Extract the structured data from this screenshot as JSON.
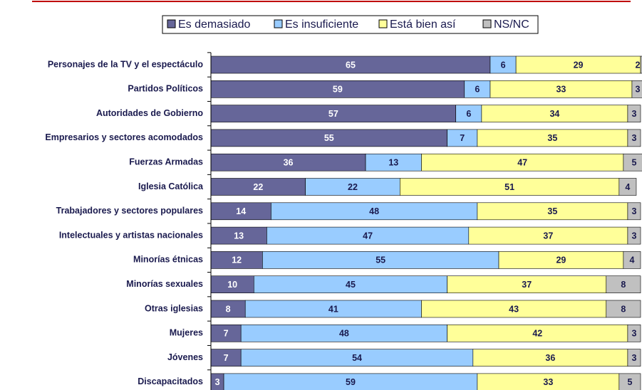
{
  "chart_data": {
    "type": "stacked_bar_horizontal",
    "categories": [
      "Personajes de la TV y el espectáculo",
      "Partidos Políticos",
      "Autoridades de Gobierno",
      "Empresarios y sectores acomodados",
      "Fuerzas Armadas",
      "Iglesia Católica",
      "Trabajadores y sectores populares",
      "Intelectuales y artistas nacionales",
      "Minorías étnicas",
      "Minorías sexuales",
      "Otras iglesias",
      "Mujeres",
      "Jóvenes",
      "Discapacitados"
    ],
    "series": [
      {
        "name": "Es demasiado",
        "color": "#666699",
        "values": [
          65,
          59,
          57,
          55,
          36,
          22,
          14,
          13,
          12,
          10,
          8,
          7,
          7,
          3
        ]
      },
      {
        "name": "Es insuficiente",
        "color": "#99ccff",
        "values": [
          6,
          6,
          6,
          7,
          13,
          22,
          48,
          47,
          55,
          45,
          41,
          48,
          54,
          59
        ]
      },
      {
        "name": "Está bien así",
        "color": "#ffff99",
        "values": [
          29,
          33,
          34,
          35,
          47,
          51,
          35,
          37,
          29,
          37,
          43,
          42,
          36,
          33
        ]
      },
      {
        "name": "NS/NC",
        "color": "#c0c0c0",
        "values": [
          2,
          3,
          3,
          3,
          5,
          4,
          3,
          3,
          4,
          8,
          8,
          3,
          3,
          5
        ]
      }
    ],
    "xlim": [
      0,
      100
    ]
  }
}
